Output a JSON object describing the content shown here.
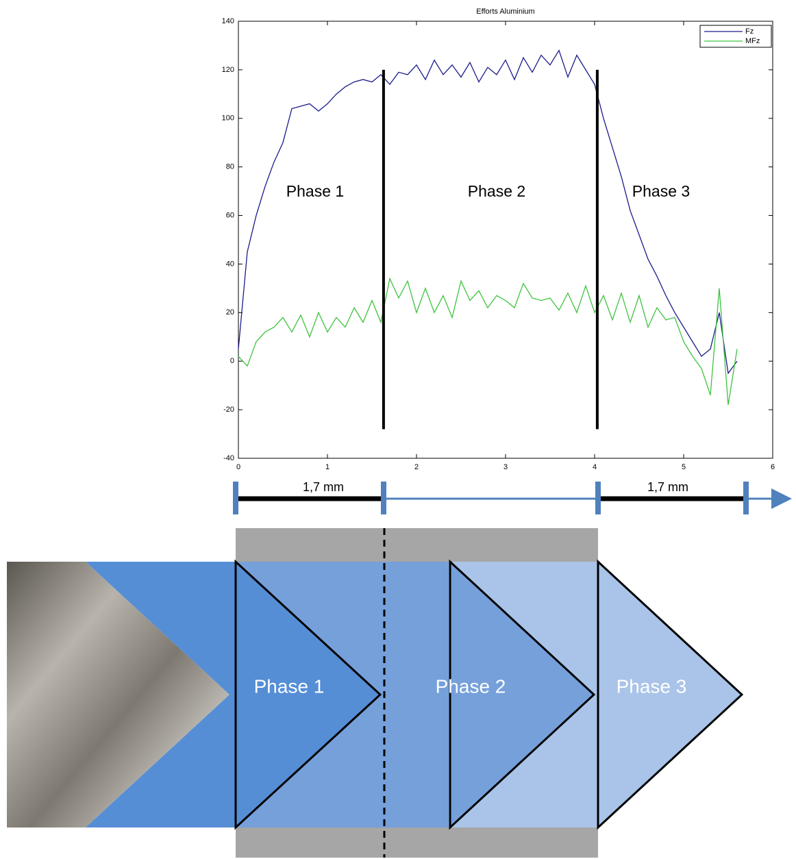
{
  "chart_data": {
    "type": "line",
    "title": "Efforts Aluminium",
    "x": [
      0,
      0.1,
      0.2,
      0.3,
      0.4,
      0.5,
      0.6,
      0.7,
      0.8,
      0.9,
      1.0,
      1.1,
      1.2,
      1.3,
      1.4,
      1.5,
      1.6,
      1.7,
      1.8,
      1.9,
      2.0,
      2.1,
      2.2,
      2.3,
      2.4,
      2.5,
      2.6,
      2.7,
      2.8,
      2.9,
      3.0,
      3.1,
      3.2,
      3.3,
      3.4,
      3.5,
      3.6,
      3.7,
      3.8,
      3.9,
      4.0,
      4.1,
      4.2,
      4.3,
      4.4,
      4.5,
      4.6,
      4.7,
      4.8,
      4.9,
      5.0,
      5.1,
      5.2,
      5.3,
      5.4,
      5.5,
      5.6
    ],
    "series": [
      {
        "name": "Fz",
        "color": "#1a1a8c",
        "values": [
          5,
          45,
          60,
          72,
          82,
          90,
          104,
          105,
          106,
          103,
          106,
          110,
          113,
          115,
          116,
          115,
          118,
          114,
          119,
          118,
          122,
          116,
          124,
          118,
          122,
          117,
          123,
          115,
          121,
          118,
          124,
          116,
          125,
          119,
          126,
          122,
          128,
          117,
          126,
          120,
          114,
          100,
          88,
          76,
          62,
          52,
          42,
          35,
          27,
          20,
          14,
          8,
          2,
          5,
          20,
          -5,
          0
        ]
      },
      {
        "name": "MFz",
        "color": "#3ec23e",
        "values": [
          2,
          -2,
          8,
          12,
          14,
          18,
          12,
          19,
          10,
          20,
          12,
          18,
          14,
          22,
          16,
          25,
          16,
          34,
          26,
          33,
          20,
          30,
          20,
          27,
          18,
          33,
          25,
          29,
          22,
          27,
          25,
          22,
          32,
          26,
          25,
          26,
          21,
          28,
          20,
          31,
          20,
          27,
          17,
          28,
          16,
          27,
          14,
          22,
          17,
          18,
          8,
          2,
          -3,
          -14,
          30,
          -18,
          5
        ]
      }
    ],
    "xlim": [
      0,
      6
    ],
    "xticks": [
      0,
      1,
      2,
      3,
      4,
      5,
      6
    ],
    "ylim": [
      -40,
      140
    ],
    "yticks": [
      -40,
      -20,
      0,
      20,
      40,
      60,
      80,
      100,
      120,
      140
    ],
    "grid": false,
    "legend": "upper-right",
    "annotations": [
      "Phase 1",
      "Phase 2",
      "Phase 3"
    ],
    "phase_boundaries": [
      1.63,
      4.03
    ],
    "boundary_range": [
      -28,
      120
    ]
  },
  "diagram": {
    "ruler_labels": [
      "1,7 mm",
      "1,7 mm"
    ],
    "phases": [
      "Phase 1",
      "Phase 2",
      "Phase 3"
    ]
  }
}
